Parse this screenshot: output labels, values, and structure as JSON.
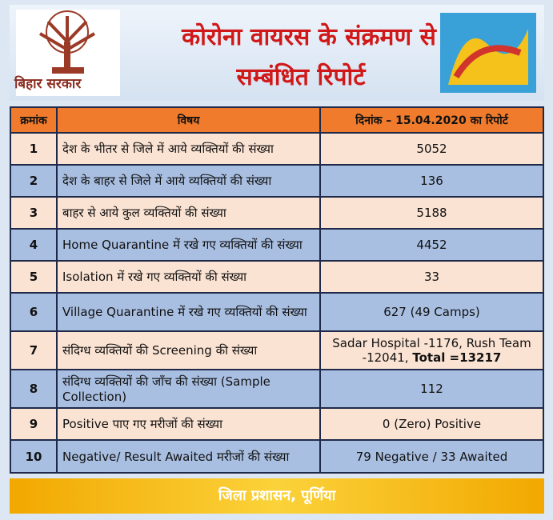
{
  "header": {
    "title_line1": "कोरोना वायरस के संक्रमण से",
    "title_line2": "सम्बंधित रिपोर्ट",
    "logo_text": "बिहार सरकार"
  },
  "table": {
    "columns": [
      "क्रमांक",
      "विषय",
      "दिनांक – 15.04.2020 का रिपोर्ट"
    ],
    "rows": [
      {
        "number": "1",
        "subject": "देश के भीतर से जिले में आये व्यक्तियों की संख्या",
        "value": "5052"
      },
      {
        "number": "2",
        "subject": "देश के बाहर से जिले में आये व्यक्तियों की संख्या",
        "value": "136"
      },
      {
        "number": "3",
        "subject": "बाहर से आये कुल व्यक्तियों की संख्या",
        "value": "5188"
      },
      {
        "number": "4",
        "subject": "Home Quarantine में रखे गए व्यक्तियों की संख्या",
        "value": "4452"
      },
      {
        "number": "5",
        "subject": "Isolation में रखे गए व्यक्तियों की संख्या",
        "value": "33"
      },
      {
        "number": "6",
        "subject": "Village Quarantine में रखे गए व्यक्तियों की संख्या",
        "value": "627 (49 Camps)"
      },
      {
        "number": "7",
        "subject": "संदिग्ध व्यक्तियों की Screening की संख्या",
        "value": "Sadar Hospital -1176, Rush Team -12041,",
        "value_bold": "Total =13217"
      },
      {
        "number": "8",
        "subject": "संदिग्ध व्यक्तियों की जाँच की संख्या (Sample Collection)",
        "value": "112"
      },
      {
        "number": "9",
        "subject": "Positive पाए गए मरीजों की संख्या",
        "value": "0 (Zero)  Positive"
      },
      {
        "number": "10",
        "subject": "Negative/ Result Awaited मरीजों की संख्या",
        "value": "79 Negative  /  33 Awaited"
      }
    ]
  },
  "footer": {
    "text": "जिला प्रशासन, पूर्णिया"
  }
}
